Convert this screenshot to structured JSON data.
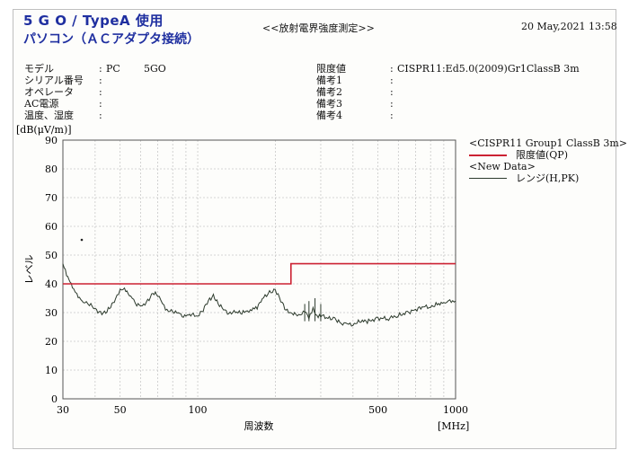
{
  "header": {
    "line1": "5 G O / TypeA 使用",
    "line2": "パソコン（ＡＣアダプタ接続）",
    "report_title": "<<放射電界強度測定>>",
    "date": "20 May,2021 13:58"
  },
  "info_left": [
    {
      "label": "モデル",
      "value": "PC"
    },
    {
      "label": "シリアル番号",
      "value": ""
    },
    {
      "label": "オペレータ",
      "value": ""
    },
    {
      "label": "AC電源",
      "value": ""
    },
    {
      "label": "温度、湿度",
      "value": ""
    }
  ],
  "model_name": "5GO",
  "info_right": [
    {
      "label": "限度値",
      "value": "CISPR11:Ed5.0(2009)Gr1ClassB 3m"
    },
    {
      "label": "備考1",
      "value": ""
    },
    {
      "label": "備考2",
      "value": ""
    },
    {
      "label": "備考3",
      "value": ""
    },
    {
      "label": "備考4",
      "value": ""
    }
  ],
  "colors": {
    "limit": "#cc2233",
    "data": "#2c3a2c",
    "heading": "#1f2fa0",
    "grid": "#c8c8c8"
  },
  "chart_data": {
    "type": "line",
    "xscale": "log",
    "xlim": [
      30,
      1000
    ],
    "ylim": [
      0,
      90
    ],
    "xlabel": "周波数",
    "xunit": "[MHz]",
    "ylabel": "レベル",
    "yunit": "[dB(μV/m)]",
    "xticks": [
      30,
      50,
      100,
      500,
      1000
    ],
    "xtick_labels": [
      "30",
      "50",
      "100",
      "500",
      "1000"
    ],
    "yticks": [
      0,
      10,
      20,
      30,
      40,
      50,
      60,
      70,
      80,
      90
    ],
    "grid": true,
    "legend": {
      "position": "right",
      "group_title": "<CISPR11 Group1 ClassB 3m>",
      "data_title": "<New Data>"
    },
    "series": [
      {
        "name": "限度値(QP)",
        "x": [
          30,
          230,
          230,
          1000
        ],
        "y": [
          40,
          40,
          47,
          47
        ]
      },
      {
        "name": "レンジ(H,PK)",
        "x": [
          30,
          31,
          32,
          33,
          34,
          36,
          38,
          40,
          42,
          44,
          46,
          48,
          50,
          52,
          55,
          58,
          61,
          64,
          67,
          70,
          73,
          76,
          80,
          84,
          88,
          92,
          96,
          100,
          105,
          110,
          115,
          120,
          126,
          132,
          140,
          150,
          160,
          170,
          180,
          190,
          200,
          210,
          220,
          230,
          240,
          250,
          260,
          270,
          280,
          290,
          300,
          320,
          340,
          360,
          380,
          400,
          430,
          460,
          500,
          550,
          600,
          650,
          700,
          750,
          800,
          850,
          900,
          950,
          1000
        ],
        "y": [
          47,
          43,
          41,
          38,
          36,
          34,
          33,
          31,
          30,
          30,
          32,
          35,
          38,
          38,
          36,
          33,
          32,
          34,
          37,
          36,
          33,
          31,
          30,
          30,
          29,
          29,
          29,
          29,
          31,
          34,
          36,
          33,
          31,
          30,
          30,
          30,
          31,
          32,
          35,
          37,
          38,
          34,
          31,
          30,
          29,
          29,
          31,
          28,
          31,
          29,
          29,
          28,
          28,
          26,
          26,
          26,
          27,
          27,
          28,
          28,
          29,
          30,
          31,
          32,
          32,
          33,
          33,
          34,
          34
        ]
      }
    ]
  }
}
